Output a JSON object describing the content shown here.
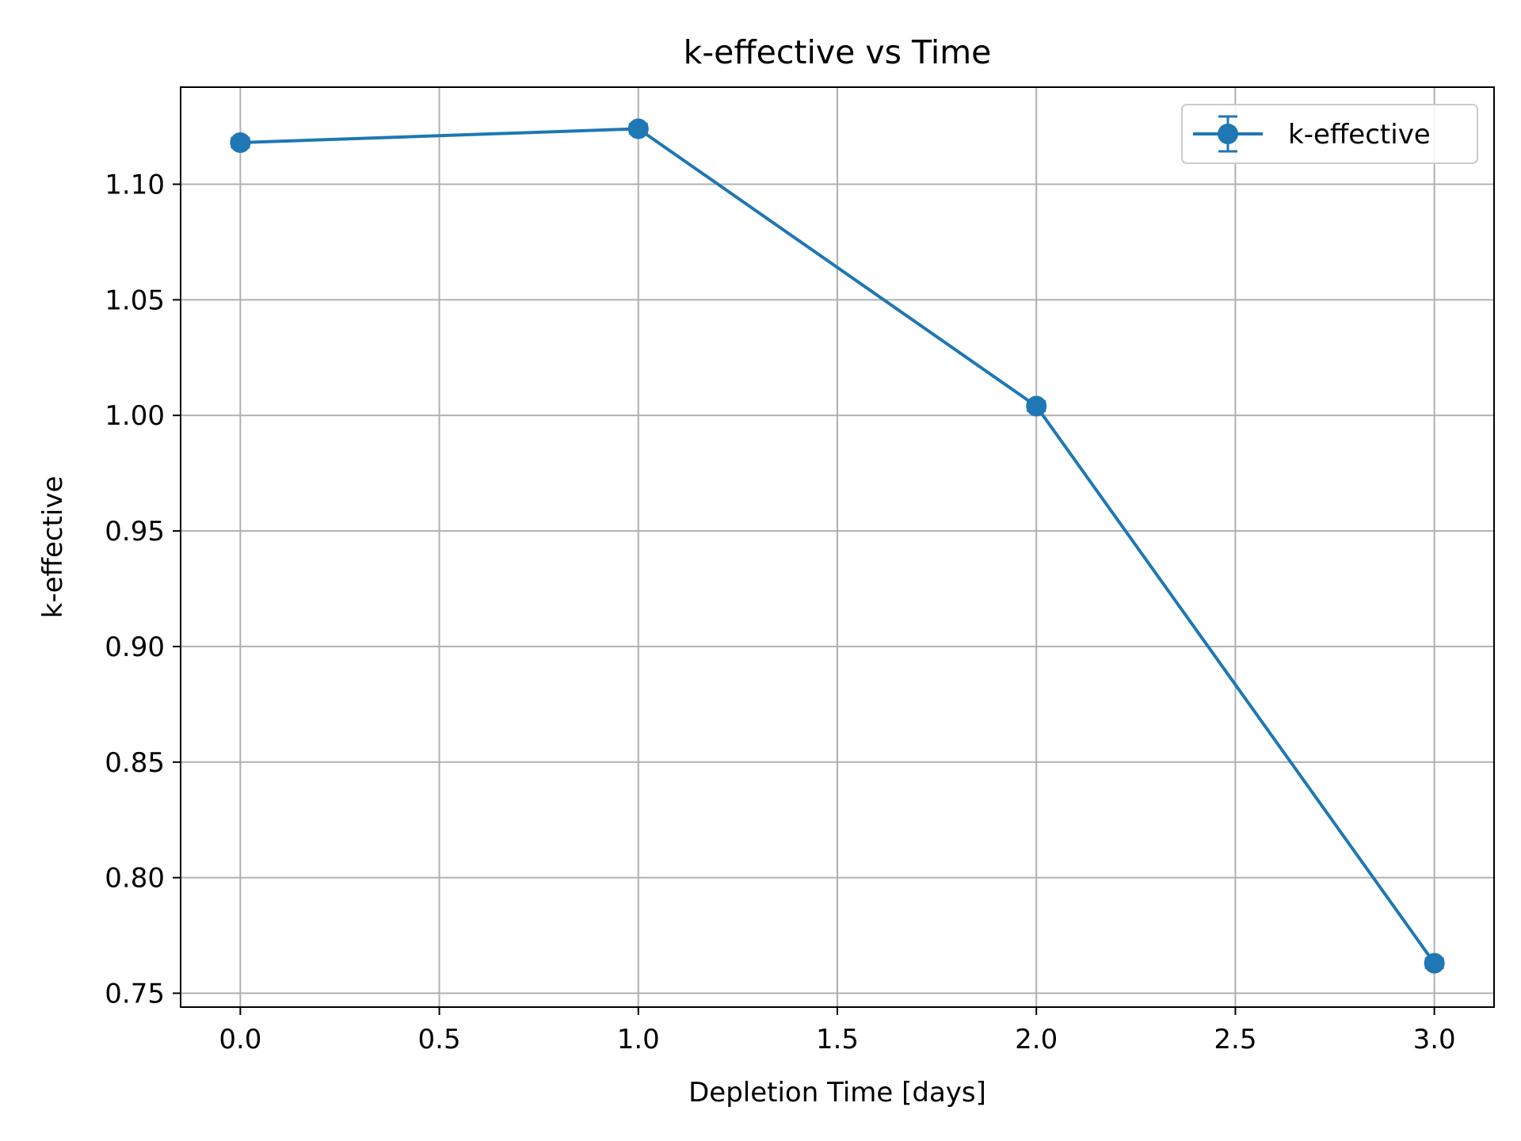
{
  "chart_data": {
    "type": "line",
    "title": "k-effective vs Time",
    "xlabel": "Depletion Time [days]",
    "ylabel": "k-effective",
    "xlim": [
      -0.15,
      3.15
    ],
    "ylim": [
      0.744,
      1.142
    ],
    "xticks": [
      0.0,
      0.5,
      1.0,
      1.5,
      2.0,
      2.5,
      3.0
    ],
    "xtick_labels": [
      "0.0",
      "0.5",
      "1.0",
      "1.5",
      "2.0",
      "2.5",
      "3.0"
    ],
    "yticks": [
      0.75,
      0.8,
      0.85,
      0.9,
      0.95,
      1.0,
      1.05,
      1.1
    ],
    "ytick_labels": [
      "0.75",
      "0.80",
      "0.85",
      "0.90",
      "0.95",
      "1.00",
      "1.05",
      "1.10"
    ],
    "grid": true,
    "legend_position": "top-right",
    "series": [
      {
        "name": "k-effective",
        "color": "#1f77b4",
        "marker": "circle",
        "error_bars": true,
        "x": [
          0,
          1,
          2,
          3
        ],
        "y": [
          1.118,
          1.124,
          1.004,
          0.763
        ],
        "yerr": [
          0.002,
          0.002,
          0.002,
          0.002
        ]
      }
    ]
  }
}
